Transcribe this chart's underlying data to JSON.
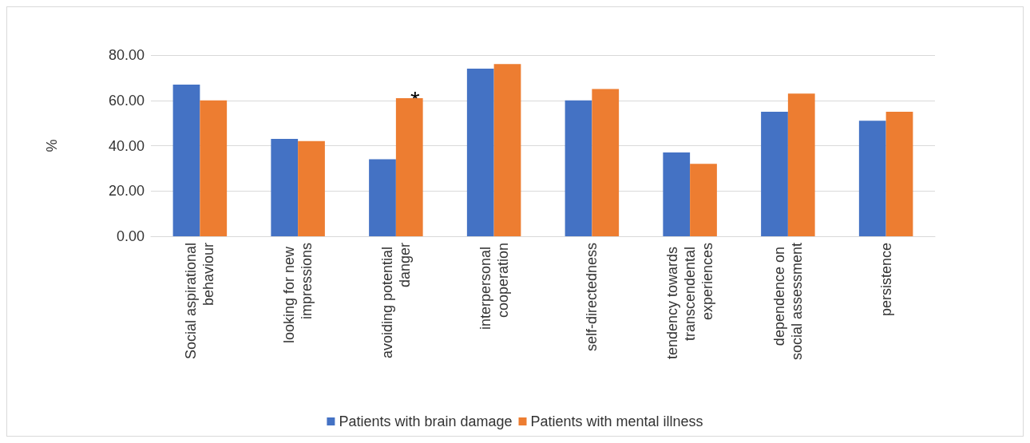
{
  "chart_data": {
    "type": "bar",
    "ylabel": "%",
    "categories": [
      "Social aspirational behaviour",
      "looking for new impressions",
      "avoiding potential danger",
      "interpersonal cooperation",
      "self-directedness",
      "tendency towards transcendental experiences",
      "dependence on social assessment",
      "persistence"
    ],
    "series": [
      {
        "name": "Patients with brain damage",
        "color": "#4472c4",
        "values": [
          67,
          43,
          34,
          74,
          60,
          37,
          55,
          51
        ]
      },
      {
        "name": "Patients with mental illness",
        "color": "#ed7d31",
        "values": [
          60,
          42,
          61,
          76,
          65,
          32,
          63,
          55
        ]
      }
    ],
    "ylim": [
      0,
      80
    ],
    "yticks": [
      {
        "value": 0,
        "label": "0.00"
      },
      {
        "value": 20,
        "label": "20.00"
      },
      {
        "value": 40,
        "label": "40.00"
      },
      {
        "value": 60,
        "label": "60.00"
      },
      {
        "value": 80,
        "label": "80.00"
      }
    ],
    "grid": "y",
    "legend": "bottom",
    "annotations": [
      "*"
    ]
  }
}
